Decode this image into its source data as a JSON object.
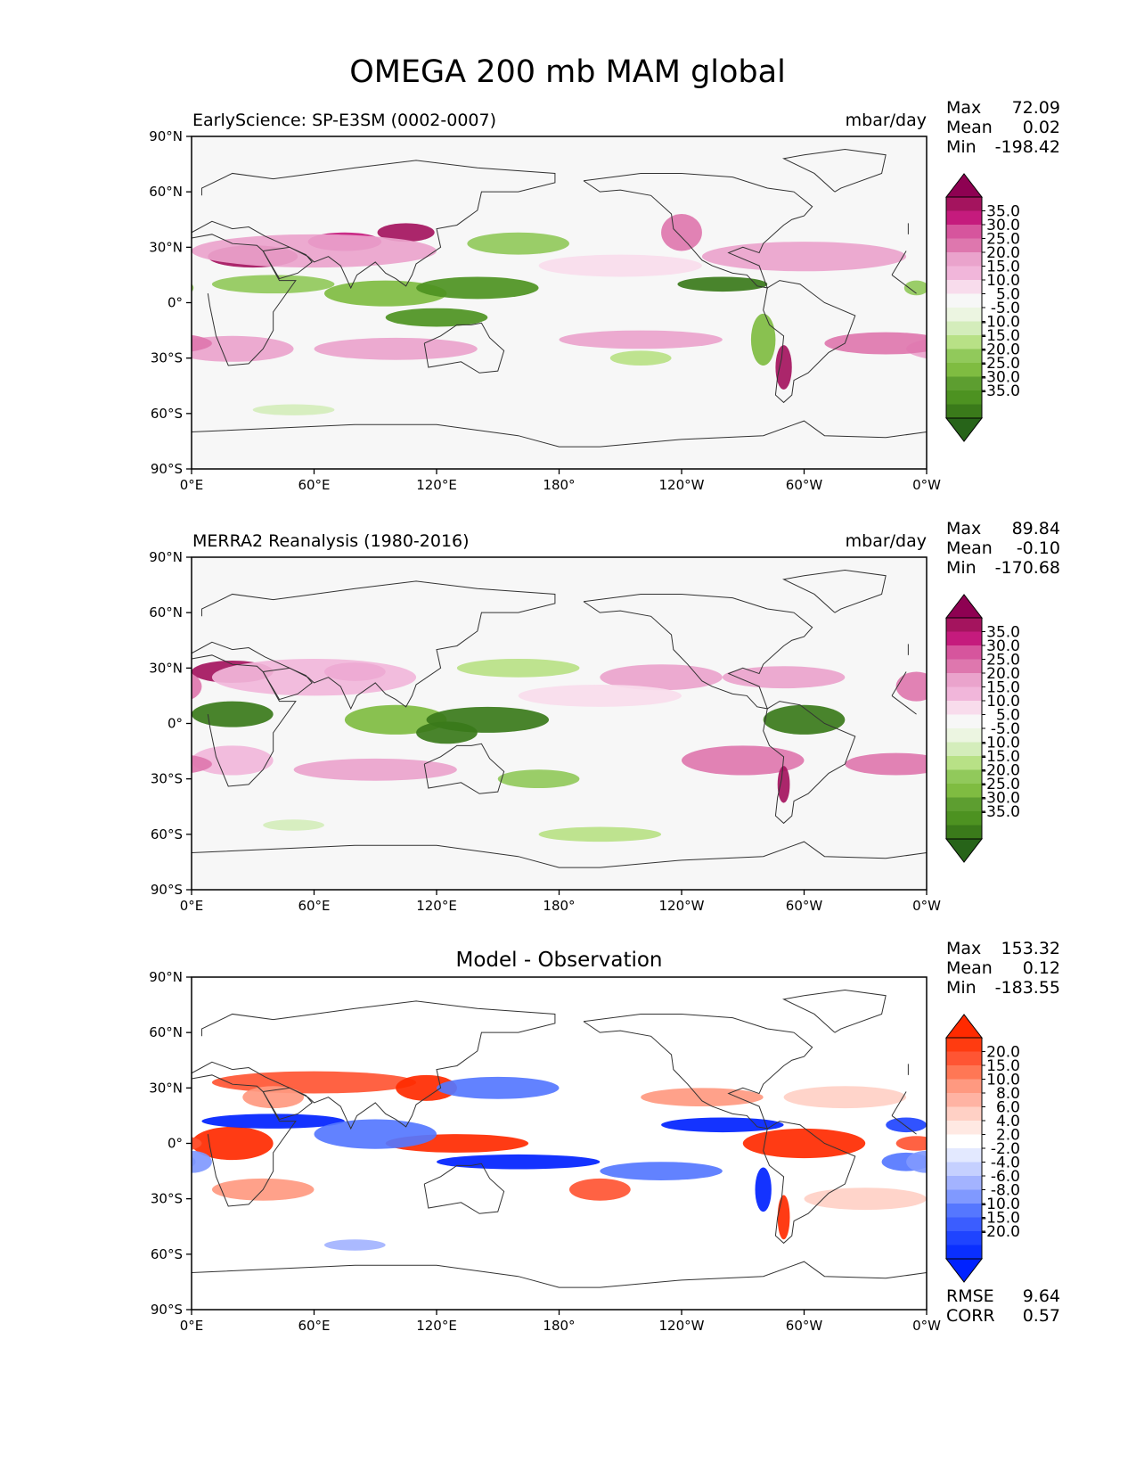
{
  "title": "OMEGA 200 mb MAM global",
  "colors": {
    "frame": "#000000",
    "ocean_bg": "#f7f7f7",
    "diff_bg": "#ffffff",
    "coast": "#333333"
  },
  "chart_data": [
    {
      "type": "heatmap",
      "panel": "model",
      "title_left": "EarlyScience: SP-E3SM (0002-0007)",
      "title_right": "mbar/day",
      "xlabel": "",
      "ylabel": "",
      "x_ticks": [
        "0°E",
        "60°E",
        "120°E",
        "180°",
        "120°W",
        "60°W",
        "0°W"
      ],
      "y_ticks": [
        "90°N",
        "60°N",
        "30°N",
        "0°",
        "30°S",
        "60°S",
        "90°S"
      ],
      "xlim": [
        0,
        360
      ],
      "ylim": [
        -90,
        90
      ],
      "stats": {
        "max_label": "Max",
        "max": "72.09",
        "mean_label": "Mean",
        "mean": "0.02",
        "min_label": "Min",
        "min": "-198.42"
      },
      "colorbar": {
        "labels": [
          "35.0",
          "30.0",
          "25.0",
          "20.0",
          "15.0",
          "10.0",
          "5.0",
          "-5.0",
          "-10.0",
          "-15.0",
          "-20.0",
          "-25.0",
          "-30.0",
          "-35.0"
        ],
        "colors": [
          "#8e0152",
          "#a4145e",
          "#c51b7d",
          "#d6559d",
          "#de77ae",
          "#eaa3cc",
          "#f1b6da",
          "#f8dcec",
          "#f7f7f7",
          "#ecf5e1",
          "#d4edbb",
          "#b8e186",
          "#91c95b",
          "#7fbc41",
          "#5d9e30",
          "#4d9221",
          "#3a7a1a",
          "#276419"
        ],
        "extend": "both"
      },
      "features": [
        {
          "lon": 30,
          "lat": 25,
          "value": 30,
          "rx": 22,
          "ry": 6
        },
        {
          "lon": 75,
          "lat": 33,
          "value": 25,
          "rx": 18,
          "ry": 5
        },
        {
          "lon": 105,
          "lat": 38,
          "value": 30,
          "rx": 14,
          "ry": 5
        },
        {
          "lon": 60,
          "lat": 28,
          "value": 15,
          "rx": 60,
          "ry": 9
        },
        {
          "lon": 240,
          "lat": 38,
          "value": 20,
          "rx": 10,
          "ry": 10
        },
        {
          "lon": 300,
          "lat": 25,
          "value": 15,
          "rx": 50,
          "ry": 8
        },
        {
          "lon": 20,
          "lat": -25,
          "value": 15,
          "rx": 30,
          "ry": 7
        },
        {
          "lon": 100,
          "lat": -25,
          "value": 15,
          "rx": 40,
          "ry": 6
        },
        {
          "lon": 220,
          "lat": -20,
          "value": 15,
          "rx": 40,
          "ry": 5
        },
        {
          "lon": 340,
          "lat": -22,
          "value": 20,
          "rx": 30,
          "ry": 6
        },
        {
          "lon": 290,
          "lat": -35,
          "value": 30,
          "rx": 4,
          "ry": 12
        },
        {
          "lon": 210,
          "lat": 20,
          "value": 5,
          "rx": 40,
          "ry": 6
        },
        {
          "lon": 40,
          "lat": 10,
          "value": -15,
          "rx": 30,
          "ry": 5
        },
        {
          "lon": 95,
          "lat": 5,
          "value": -20,
          "rx": 30,
          "ry": 7
        },
        {
          "lon": 140,
          "lat": 8,
          "value": -25,
          "rx": 30,
          "ry": 6
        },
        {
          "lon": 120,
          "lat": -8,
          "value": -25,
          "rx": 25,
          "ry": 5
        },
        {
          "lon": 260,
          "lat": 10,
          "value": -30,
          "rx": 22,
          "ry": 4
        },
        {
          "lon": 160,
          "lat": 32,
          "value": -15,
          "rx": 25,
          "ry": 6
        },
        {
          "lon": 280,
          "lat": -20,
          "value": -20,
          "rx": 6,
          "ry": 14
        },
        {
          "lon": 355,
          "lat": 8,
          "value": -15,
          "rx": 6,
          "ry": 4
        },
        {
          "lon": 50,
          "lat": -58,
          "value": -5,
          "rx": 20,
          "ry": 3
        },
        {
          "lon": 220,
          "lat": -30,
          "value": -10,
          "rx": 15,
          "ry": 4
        }
      ]
    },
    {
      "type": "heatmap",
      "panel": "observation",
      "title_left": "MERRA2 Reanalysis (1980-2016)",
      "title_right": "mbar/day",
      "xlabel": "",
      "ylabel": "",
      "x_ticks": [
        "0°E",
        "60°E",
        "120°E",
        "180°",
        "120°W",
        "60°W",
        "0°W"
      ],
      "y_ticks": [
        "90°N",
        "60°N",
        "30°N",
        "0°",
        "30°S",
        "60°S",
        "90°S"
      ],
      "xlim": [
        0,
        360
      ],
      "ylim": [
        -90,
        90
      ],
      "stats": {
        "max_label": "Max",
        "max": "89.84",
        "mean_label": "Mean",
        "mean": "-0.10",
        "min_label": "Min",
        "min": "-170.68"
      },
      "colorbar": {
        "labels": [
          "35.0",
          "30.0",
          "25.0",
          "20.0",
          "15.0",
          "10.0",
          "5.0",
          "-5.0",
          "-10.0",
          "-15.0",
          "-20.0",
          "-25.0",
          "-30.0",
          "-35.0"
        ],
        "colors": [
          "#8e0152",
          "#a4145e",
          "#c51b7d",
          "#d6559d",
          "#de77ae",
          "#eaa3cc",
          "#f1b6da",
          "#f8dcec",
          "#f7f7f7",
          "#ecf5e1",
          "#d4edbb",
          "#b8e186",
          "#91c95b",
          "#7fbc41",
          "#5d9e30",
          "#4d9221",
          "#3a7a1a",
          "#276419"
        ],
        "extend": "both"
      },
      "features": [
        {
          "lon": 20,
          "lat": 28,
          "value": 30,
          "rx": 20,
          "ry": 6
        },
        {
          "lon": 80,
          "lat": 28,
          "value": 25,
          "rx": 15,
          "ry": 5
        },
        {
          "lon": 60,
          "lat": 25,
          "value": 10,
          "rx": 50,
          "ry": 10
        },
        {
          "lon": 230,
          "lat": 25,
          "value": 15,
          "rx": 30,
          "ry": 7
        },
        {
          "lon": 290,
          "lat": 25,
          "value": 15,
          "rx": 30,
          "ry": 6
        },
        {
          "lon": 355,
          "lat": 20,
          "value": 20,
          "rx": 10,
          "ry": 8
        },
        {
          "lon": 20,
          "lat": -20,
          "value": 10,
          "rx": 20,
          "ry": 8
        },
        {
          "lon": 90,
          "lat": -25,
          "value": 15,
          "rx": 40,
          "ry": 6
        },
        {
          "lon": 270,
          "lat": -20,
          "value": 20,
          "rx": 30,
          "ry": 8
        },
        {
          "lon": 345,
          "lat": -22,
          "value": 20,
          "rx": 25,
          "ry": 6
        },
        {
          "lon": 290,
          "lat": -33,
          "value": 30,
          "rx": 3,
          "ry": 10
        },
        {
          "lon": 200,
          "lat": 15,
          "value": 5,
          "rx": 40,
          "ry": 6
        },
        {
          "lon": 20,
          "lat": 5,
          "value": -30,
          "rx": 20,
          "ry": 7
        },
        {
          "lon": 100,
          "lat": 2,
          "value": -20,
          "rx": 25,
          "ry": 8
        },
        {
          "lon": 145,
          "lat": 2,
          "value": -30,
          "rx": 30,
          "ry": 7
        },
        {
          "lon": 125,
          "lat": -5,
          "value": -30,
          "rx": 15,
          "ry": 6
        },
        {
          "lon": 300,
          "lat": 2,
          "value": -30,
          "rx": 20,
          "ry": 8
        },
        {
          "lon": 160,
          "lat": 30,
          "value": -10,
          "rx": 30,
          "ry": 5
        },
        {
          "lon": 170,
          "lat": -30,
          "value": -15,
          "rx": 20,
          "ry": 5
        },
        {
          "lon": 200,
          "lat": -60,
          "value": -10,
          "rx": 30,
          "ry": 4
        },
        {
          "lon": 50,
          "lat": -55,
          "value": -5,
          "rx": 15,
          "ry": 3
        }
      ]
    },
    {
      "type": "heatmap",
      "panel": "difference",
      "title_center": "Model - Observation",
      "xlabel": "",
      "ylabel": "",
      "x_ticks": [
        "0°E",
        "60°E",
        "120°E",
        "180°",
        "120°W",
        "60°W",
        "0°W"
      ],
      "y_ticks": [
        "90°N",
        "60°N",
        "30°N",
        "0°",
        "30°S",
        "60°S",
        "90°S"
      ],
      "xlim": [
        0,
        360
      ],
      "ylim": [
        -90,
        90
      ],
      "stats": {
        "max_label": "Max",
        "max": "153.32",
        "mean_label": "Mean",
        "mean": "0.12",
        "min_label": "Min",
        "min": "-183.55"
      },
      "metrics": {
        "rmse_label": "RMSE",
        "rmse": "9.64",
        "corr_label": "CORR",
        "corr": "0.57"
      },
      "colorbar": {
        "labels": [
          "20.0",
          "15.0",
          "10.0",
          "8.0",
          "6.0",
          "4.0",
          "2.0",
          "-2.0",
          "-4.0",
          "-6.0",
          "-8.0",
          "-10.0",
          "-15.0",
          "-20.0"
        ],
        "colors": [
          "#ff2a00",
          "#ff3b10",
          "#ff5533",
          "#ff7755",
          "#ff9980",
          "#ffb3a3",
          "#ffd0c5",
          "#ffe9e3",
          "#ffffff",
          "#e3e9ff",
          "#c5d0ff",
          "#a3b3ff",
          "#8099ff",
          "#5577ff",
          "#3b5dff",
          "#1f44ff",
          "#0a2fff",
          "#0022ff"
        ],
        "extend": "both"
      },
      "features": [
        {
          "lon": 60,
          "lat": 33,
          "value": 15,
          "rx": 50,
          "ry": 6
        },
        {
          "lon": 115,
          "lat": 30,
          "value": 20,
          "rx": 15,
          "ry": 7
        },
        {
          "lon": 20,
          "lat": 0,
          "value": 20,
          "rx": 20,
          "ry": 9
        },
        {
          "lon": 40,
          "lat": 25,
          "value": 10,
          "rx": 15,
          "ry": 6
        },
        {
          "lon": 130,
          "lat": 0,
          "value": 20,
          "rx": 35,
          "ry": 5
        },
        {
          "lon": 300,
          "lat": 0,
          "value": 20,
          "rx": 30,
          "ry": 8
        },
        {
          "lon": 355,
          "lat": 0,
          "value": 15,
          "rx": 10,
          "ry": 4
        },
        {
          "lon": 200,
          "lat": -25,
          "value": 15,
          "rx": 15,
          "ry": 6
        },
        {
          "lon": 35,
          "lat": -25,
          "value": 10,
          "rx": 25,
          "ry": 6
        },
        {
          "lon": 250,
          "lat": 25,
          "value": 10,
          "rx": 30,
          "ry": 5
        },
        {
          "lon": 320,
          "lat": 25,
          "value": 6,
          "rx": 30,
          "ry": 6
        },
        {
          "lon": 330,
          "lat": -30,
          "value": 6,
          "rx": 30,
          "ry": 6
        },
        {
          "lon": 290,
          "lat": -40,
          "value": 20,
          "rx": 3,
          "ry": 12
        },
        {
          "lon": 40,
          "lat": 12,
          "value": -20,
          "rx": 35,
          "ry": 4
        },
        {
          "lon": 90,
          "lat": 5,
          "value": -10,
          "rx": 30,
          "ry": 8
        },
        {
          "lon": 150,
          "lat": 30,
          "value": -10,
          "rx": 30,
          "ry": 6
        },
        {
          "lon": 160,
          "lat": -10,
          "value": -20,
          "rx": 40,
          "ry": 4
        },
        {
          "lon": 260,
          "lat": 10,
          "value": -20,
          "rx": 30,
          "ry": 4
        },
        {
          "lon": 230,
          "lat": -15,
          "value": -10,
          "rx": 30,
          "ry": 5
        },
        {
          "lon": 350,
          "lat": 10,
          "value": -15,
          "rx": 10,
          "ry": 4
        },
        {
          "lon": 350,
          "lat": -10,
          "value": -10,
          "rx": 12,
          "ry": 5
        },
        {
          "lon": 280,
          "lat": -25,
          "value": -20,
          "rx": 4,
          "ry": 12
        },
        {
          "lon": 80,
          "lat": -55,
          "value": -6,
          "rx": 15,
          "ry": 3
        },
        {
          "lon": 0,
          "lat": -10,
          "value": -8,
          "rx": 10,
          "ry": 6
        }
      ]
    }
  ]
}
